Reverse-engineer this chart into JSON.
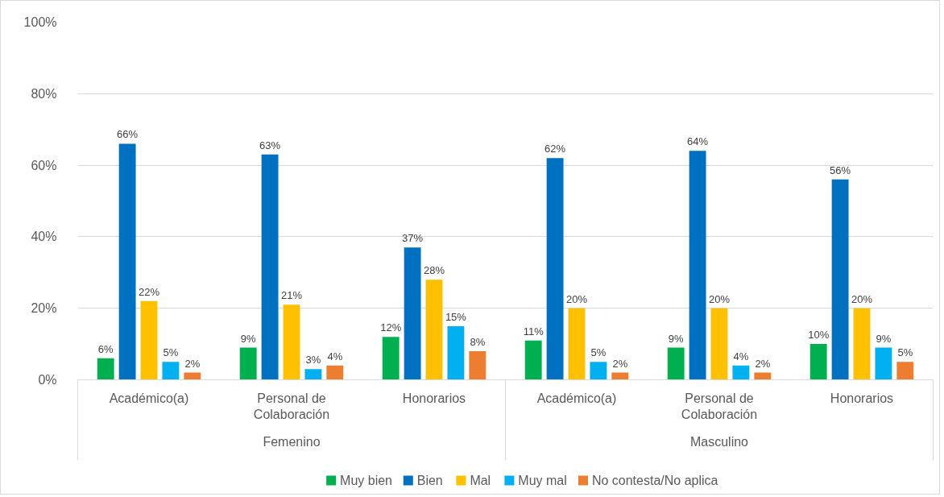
{
  "chart_data": {
    "type": "bar",
    "categories": [
      "Académico(a)",
      "Personal de Colaboración",
      "Honorarios",
      "Académico(a)",
      "Personal de Colaboración",
      "Honorarios"
    ],
    "annotations": [
      "Femenino",
      "Masculino"
    ],
    "series": [
      {
        "name": "Muy bien",
        "color": "#00b050",
        "values": [
          6,
          9,
          12,
          11,
          9,
          10
        ],
        "value_labels": [
          "6%",
          "9%",
          "12%",
          "11%",
          "9%",
          "10%"
        ]
      },
      {
        "name": "Bien",
        "color": "#0070c0",
        "values": [
          66,
          63,
          37,
          62,
          64,
          56
        ],
        "value_labels": [
          "66%",
          "63%",
          "37%",
          "62%",
          "64%",
          "56%"
        ]
      },
      {
        "name": "Mal",
        "color": "#ffc000",
        "values": [
          22,
          21,
          28,
          20,
          20,
          20
        ],
        "value_labels": [
          "22%",
          "21%",
          "28%",
          "20%",
          "20%",
          "20%"
        ]
      },
      {
        "name": "Muy mal",
        "color": "#00b0f0",
        "values": [
          5,
          3,
          15,
          5,
          4,
          9
        ],
        "value_labels": [
          "5%",
          "3%",
          "15%",
          "5%",
          "4%",
          "9%"
        ]
      },
      {
        "name": "No contesta/No aplica",
        "color": "#ed7d31",
        "values": [
          2,
          4,
          8,
          2,
          2,
          5
        ],
        "value_labels": [
          "2%",
          "4%",
          "8%",
          "2%",
          "2%",
          "5%"
        ]
      }
    ],
    "ylim": [
      0,
      100
    ],
    "yticks": [
      {
        "value": 0,
        "label": "0%"
      },
      {
        "value": 20,
        "label": "20%"
      },
      {
        "value": 40,
        "label": "40%"
      },
      {
        "value": 60,
        "label": "60%"
      },
      {
        "value": 80,
        "label": "80%"
      },
      {
        "value": 100,
        "label": "100%"
      }
    ],
    "grid": "y",
    "legend": "bottom"
  }
}
